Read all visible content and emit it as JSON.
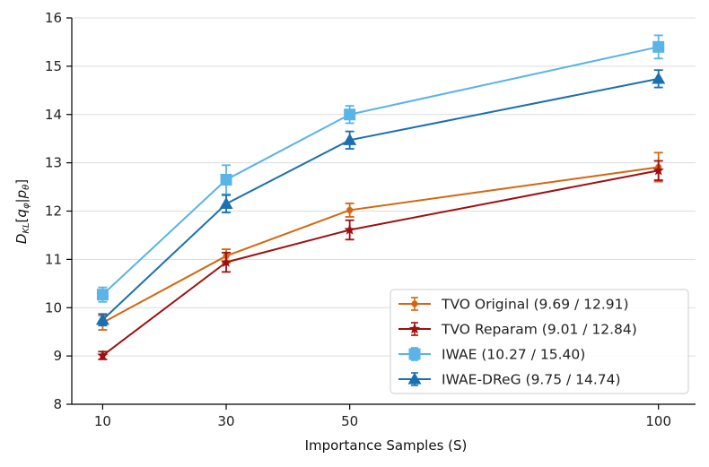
{
  "chart_data": {
    "type": "line",
    "title": "",
    "xlabel": "Importance Samples (S)",
    "ylabel": "D_KL[q_φ|p_θ]",
    "ylabel_parts": {
      "main": "D",
      "sub": "KL",
      "open": "[",
      "q": "q",
      "q_sub": "φ",
      "bar": "|",
      "p": "p",
      "p_sub": "θ",
      "close": "]"
    },
    "x": [
      10,
      30,
      50,
      100
    ],
    "x_tick_labels": [
      "10",
      "30",
      "50",
      "100"
    ],
    "xlim": [
      5,
      106
    ],
    "ylim": [
      8,
      16
    ],
    "y_ticks": [
      8,
      9,
      10,
      11,
      12,
      13,
      14,
      15,
      16
    ],
    "grid": "horizontal",
    "legend_position": "lower-right",
    "series": [
      {
        "name": "TVO Original (9.69 / 12.91)",
        "color": "#d4660f",
        "marker": "circle",
        "values": [
          9.69,
          11.07,
          12.02,
          12.91
        ],
        "errors": [
          0.15,
          0.14,
          0.14,
          0.3
        ]
      },
      {
        "name": "TVO Reparam (9.01 / 12.84)",
        "color": "#9e1010",
        "marker": "star",
        "values": [
          9.01,
          10.94,
          11.61,
          12.84
        ],
        "errors": [
          0.08,
          0.2,
          0.2,
          0.2
        ]
      },
      {
        "name": "IWAE (10.27 / 15.40)",
        "color": "#5ab4e6",
        "marker": "square",
        "values": [
          10.27,
          12.65,
          14.0,
          15.4
        ],
        "errors": [
          0.15,
          0.3,
          0.18,
          0.24
        ]
      },
      {
        "name": "IWAE-DReG (9.75 / 14.74)",
        "color": "#1a70b0",
        "marker": "triangle",
        "values": [
          9.75,
          12.15,
          13.47,
          14.74
        ],
        "errors": [
          0.12,
          0.18,
          0.18,
          0.18
        ]
      }
    ]
  }
}
